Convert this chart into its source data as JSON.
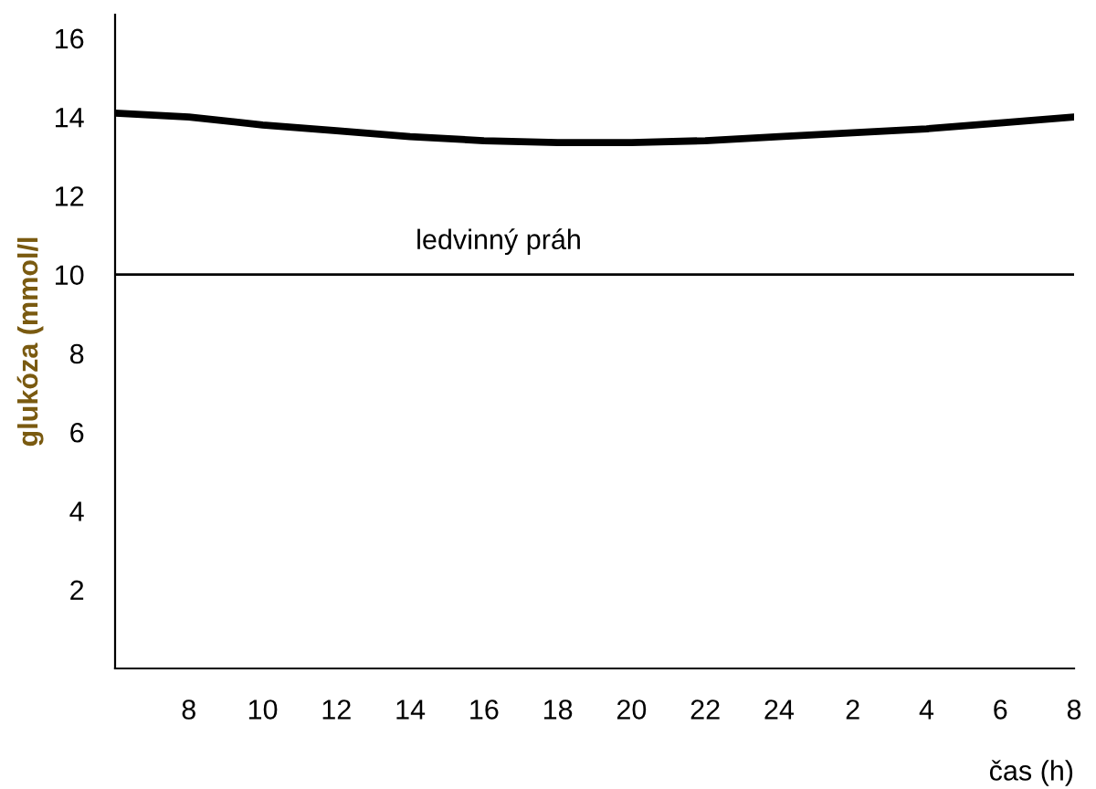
{
  "chart_data": {
    "type": "line",
    "xlabel": "čas (h)",
    "ylabel": "glukóza (mmol/l",
    "categories": [
      null,
      "8",
      "10",
      "12",
      "14",
      "16",
      "18",
      "20",
      "22",
      "24",
      "2",
      "4",
      "6",
      "8"
    ],
    "series": [
      {
        "color": "#000000",
        "values": [
          14.1,
          14.0,
          13.8,
          13.65,
          13.5,
          13.4,
          13.35,
          13.35,
          13.4,
          13.5,
          13.6,
          13.7,
          13.85,
          14.0
        ]
      }
    ],
    "ylim": [
      0,
      16.6
    ],
    "yticks": [
      2,
      4,
      6,
      8,
      10,
      12,
      14,
      16
    ],
    "ref_lines": [
      {
        "axis": "y",
        "value": 10,
        "label": "ledvinný práh",
        "color": "#000000"
      }
    ],
    "grid": false,
    "legend": false,
    "marker": "none",
    "line_style": "solid"
  }
}
